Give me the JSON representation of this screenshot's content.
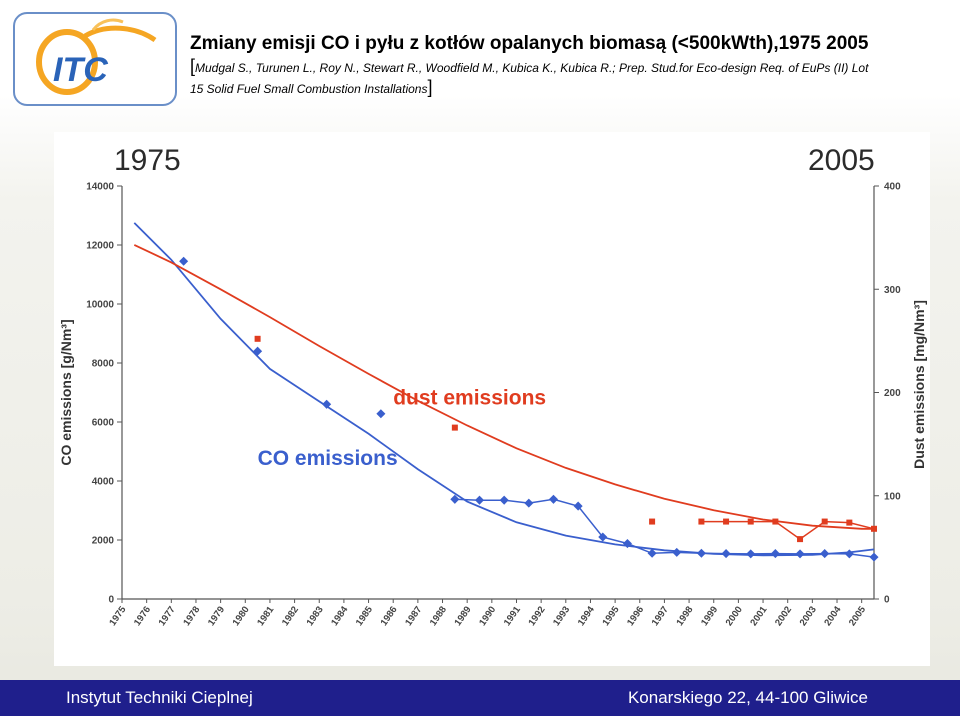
{
  "header": {
    "title": "Zmiany emisji CO i pyłu z kotłów opalanych biomasą (<500kWth),1975 2005",
    "citation_line1": "Mudgal S., Turunen L., Roy N., Stewart R., Woodfield M., Kubica K., Kubica R.; Prep. Stud.for Eco-design Req. of EuPs (II) Lot",
    "citation_line2": "15 Solid Fuel Small Combustion Installations",
    "logo_text": "ITC",
    "colors": {
      "logo_blue": "#2a63b8",
      "logo_orange": "#f5a623",
      "logo_frame": "#6a8fc8"
    }
  },
  "footer": {
    "left": "Instytut Techniki Cieplnej",
    "right": "Konarskiego 22, 44-100 Gliwice",
    "background": "#1f1f8c"
  },
  "chart_data": {
    "type": "scatter",
    "corner_label_left": "1975",
    "corner_label_right": "2005",
    "ylabel": "CO emissions [g/Nm³]",
    "y2label": "Dust emissions [mg/Nm³]",
    "x_ticks": [
      "1975",
      "1976",
      "1977",
      "1978",
      "1979",
      "1980",
      "1981",
      "1982",
      "1983",
      "1984",
      "1985",
      "1986",
      "1987",
      "1988",
      "1989",
      "1990",
      "1991",
      "1992",
      "1993",
      "1994",
      "1995",
      "1996",
      "1997",
      "1998",
      "1999",
      "2000",
      "2001",
      "2002",
      "2003",
      "2004",
      "2005"
    ],
    "xlim": [
      1975,
      2005.5
    ],
    "ylim": [
      0,
      14000
    ],
    "y_ticks": [
      "0",
      "2000",
      "4000",
      "6000",
      "8000",
      "10000",
      "12000",
      "14000"
    ],
    "y2lim": [
      0,
      400
    ],
    "y2_ticks": [
      "0",
      "100",
      "200",
      "300",
      "400"
    ],
    "grid": false,
    "annotations": [
      {
        "text": "dust emissions",
        "color": "#e03c1f",
        "x": 1986,
        "y": 6600
      },
      {
        "text": "CO emissions",
        "color": "#3a5fcd",
        "x": 1980.5,
        "y": 4550
      }
    ],
    "series": [
      {
        "name": "CO emissions",
        "axis": "left",
        "color": "#3a5fcd",
        "points": [
          [
            1977.5,
            11450
          ],
          [
            1980.5,
            8400
          ],
          [
            1983.3,
            6600
          ],
          [
            1985.5,
            6280
          ],
          [
            1988.5,
            3380
          ],
          [
            1989.5,
            3350
          ],
          [
            1990.5,
            3350
          ],
          [
            1991.5,
            3250
          ],
          [
            1992.5,
            3380
          ],
          [
            1993.5,
            3150
          ],
          [
            1994.5,
            2100
          ],
          [
            1995.5,
            1880
          ],
          [
            1996.5,
            1550
          ],
          [
            1997.5,
            1580
          ],
          [
            1998.5,
            1550
          ],
          [
            1999.5,
            1540
          ],
          [
            2000.5,
            1530
          ],
          [
            2001.5,
            1540
          ],
          [
            2002.5,
            1530
          ],
          [
            2003.5,
            1540
          ],
          [
            2004.5,
            1530
          ],
          [
            2005.5,
            1420
          ]
        ],
        "connect_from_index": 4,
        "trend": [
          [
            1975.5,
            12750
          ],
          [
            1977,
            11500
          ],
          [
            1979,
            9500
          ],
          [
            1981,
            7800
          ],
          [
            1983,
            6700
          ],
          [
            1985,
            5600
          ],
          [
            1987,
            4400
          ],
          [
            1989,
            3300
          ],
          [
            1991,
            2600
          ],
          [
            1993,
            2150
          ],
          [
            1995,
            1850
          ],
          [
            1997,
            1650
          ],
          [
            1999,
            1530
          ],
          [
            2001,
            1480
          ],
          [
            2003,
            1500
          ],
          [
            2004.5,
            1580
          ],
          [
            2005.5,
            1680
          ]
        ]
      },
      {
        "name": "dust emissions",
        "axis": "right",
        "color": "#e03c1f",
        "points": [
          [
            1980.5,
            252
          ],
          [
            1988.5,
            166
          ],
          [
            1996.5,
            75
          ],
          [
            1998.5,
            75
          ],
          [
            1999.5,
            75
          ],
          [
            2000.5,
            75
          ],
          [
            2001.5,
            75
          ],
          [
            2002.5,
            58
          ],
          [
            2003.5,
            75
          ],
          [
            2004.5,
            74
          ],
          [
            2005.5,
            68
          ]
        ],
        "connect_from_index": 3,
        "trend": [
          [
            1975.5,
            343
          ],
          [
            1977,
            326
          ],
          [
            1979,
            300
          ],
          [
            1981,
            273
          ],
          [
            1983,
            245
          ],
          [
            1985,
            218
          ],
          [
            1987,
            192
          ],
          [
            1989,
            168
          ],
          [
            1991,
            146
          ],
          [
            1993,
            127
          ],
          [
            1995,
            111
          ],
          [
            1997,
            97
          ],
          [
            1999,
            86
          ],
          [
            2001,
            77
          ],
          [
            2003,
            71
          ],
          [
            2005,
            68
          ],
          [
            2005.5,
            68
          ]
        ]
      }
    ]
  }
}
